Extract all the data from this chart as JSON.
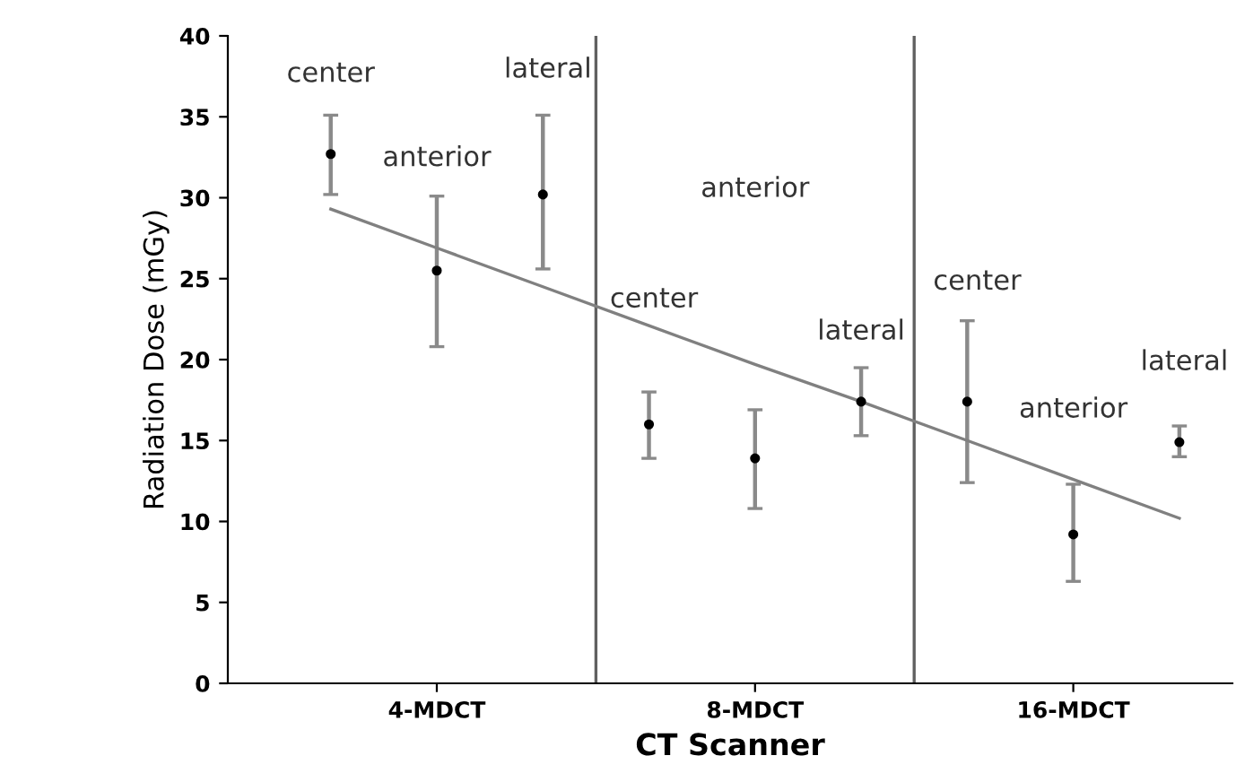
{
  "chart_data": {
    "type": "scatter",
    "xlabel": "CT Scanner",
    "ylabel": "Radiation Dose (mGy)",
    "categories": [
      null,
      "4-MDCT",
      null,
      null,
      "8-MDCT",
      null,
      null,
      "16-MDCT",
      null
    ],
    "ylim": [
      0,
      40
    ],
    "yticks": [
      0,
      5,
      10,
      15,
      20,
      25,
      30,
      35,
      40
    ],
    "grid": false,
    "legend": false,
    "series": [
      {
        "color": "#000000",
        "marker": "circle",
        "values": [
          32.7,
          25.5,
          30.2,
          16.0,
          13.9,
          17.4,
          17.4,
          9.2,
          14.9
        ],
        "errors": [
          [
            30.2,
            35.1
          ],
          [
            20.8,
            30.1
          ],
          [
            25.6,
            35.1
          ],
          [
            13.9,
            18.0
          ],
          [
            10.8,
            16.9
          ],
          [
            15.3,
            19.5
          ],
          [
            12.4,
            22.4
          ],
          [
            6.3,
            12.3
          ],
          [
            14.0,
            15.9
          ]
        ]
      },
      {
        "type": "line",
        "color": "#808080",
        "values": [
          29.3,
          26.9,
          24.5,
          22.1,
          19.7,
          17.4,
          15.0,
          12.6,
          10.2
        ]
      }
    ],
    "annotations": [
      "center",
      "anterior",
      "lateral",
      "center",
      "anterior",
      "lateral",
      "center",
      "anterior",
      "lateral"
    ]
  }
}
